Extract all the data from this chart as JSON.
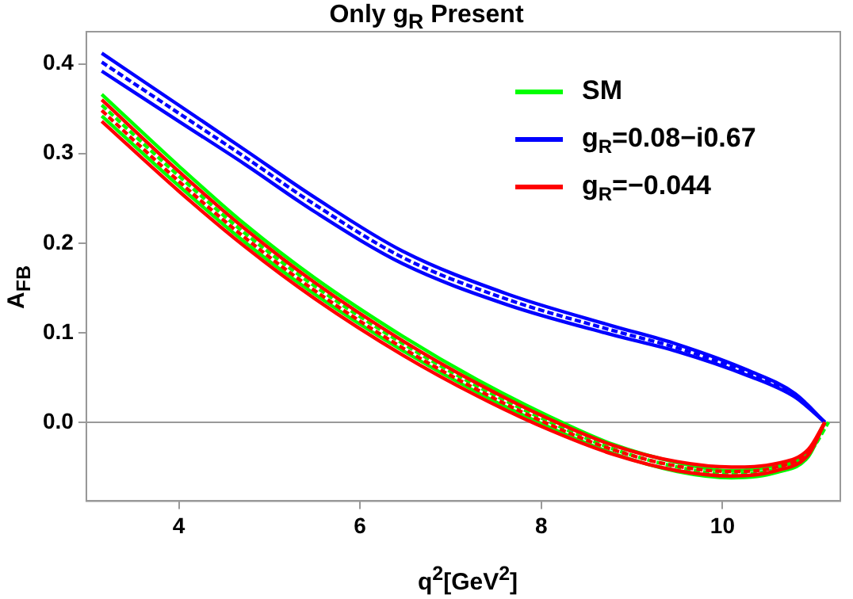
{
  "chart_data": {
    "type": "line",
    "title": "Only g$_{R}$ Present",
    "xlabel": "q$^{2}$[GeV$^{2}$]",
    "ylabel": "A$_{FB}$",
    "xlim": [
      2.98,
      11.3
    ],
    "xticks": [
      4,
      6,
      8,
      10
    ],
    "ylim": [
      -0.088,
      0.436
    ],
    "yticks": [
      {
        "value": 0,
        "label": "0.0"
      },
      0.1,
      0.2,
      0.3,
      0.4
    ],
    "grid": false,
    "legend": "top right",
    "marker": "none",
    "ref_lines": [
      {
        "axis": "y",
        "value": 0,
        "color": "#999999"
      }
    ],
    "series": [
      {
        "name": "SM",
        "color": "#00ff00",
        "line_style": "dashed",
        "x": [
          3.15,
          4,
          4.73,
          5.5,
          6.47,
          7.3,
          8.1,
          8.8,
          9.5,
          10.1,
          10.6,
          10.95,
          11.17
        ],
        "values": [
          0.354,
          0.275,
          0.211,
          0.152,
          0.088,
          0.04,
          0.0,
          -0.03,
          -0.05,
          -0.058,
          -0.052,
          -0.035,
          0
        ]
      },
      {
        "color": "#00ff00",
        "line_style": "solid",
        "x": [
          3.15,
          4,
          4.73,
          5.5,
          6.47,
          7.3,
          8.1,
          8.8,
          9.5,
          10.1,
          10.6,
          10.95,
          11.13
        ],
        "values": [
          0.342,
          0.264,
          0.201,
          0.143,
          0.08,
          0.033,
          -0.006,
          -0.035,
          -0.055,
          -0.062,
          -0.056,
          -0.038,
          0
        ]
      },
      {
        "color": "#00ff00",
        "line_style": "solid",
        "x": [
          3.15,
          4,
          4.73,
          5.5,
          6.47,
          7.3,
          8.1,
          8.8,
          9.5,
          10.1,
          10.6,
          10.95,
          11.13
        ],
        "values": [
          0.366,
          0.286,
          0.221,
          0.161,
          0.096,
          0.047,
          0.006,
          -0.025,
          -0.045,
          -0.054,
          -0.048,
          -0.032,
          0
        ]
      },
      {
        "name": "g$_{R}$=0.08−i0.67",
        "color": "#0000ff",
        "line_style": "dashed",
        "x": [
          3.15,
          4,
          4.73,
          5.5,
          6.47,
          7.63,
          8.77,
          9.5,
          10.28,
          10.8,
          11.13
        ],
        "values": [
          0.402,
          0.345,
          0.296,
          0.243,
          0.184,
          0.137,
          0.103,
          0.083,
          0.055,
          0.03,
          0
        ]
      },
      {
        "color": "#0000ff",
        "line_style": "solid",
        "x": [
          3.15,
          4,
          4.73,
          5.5,
          6.47,
          7.63,
          8.77,
          9.5,
          10.28,
          10.8,
          11.13
        ],
        "values": [
          0.392,
          0.336,
          0.288,
          0.235,
          0.177,
          0.131,
          0.098,
          0.079,
          0.052,
          0.028,
          0
        ]
      },
      {
        "color": "#0000ff",
        "line_style": "solid",
        "x": [
          3.15,
          4,
          4.73,
          5.5,
          6.47,
          7.63,
          8.77,
          9.5,
          10.28,
          10.8,
          11.13
        ],
        "values": [
          0.412,
          0.354,
          0.304,
          0.251,
          0.191,
          0.143,
          0.108,
          0.087,
          0.058,
          0.032,
          0
        ]
      },
      {
        "name": "g$_{R}$=−0.044",
        "color": "#ff0000",
        "line_style": "dashed",
        "x": [
          3.15,
          4,
          4.73,
          5.5,
          6.47,
          7.3,
          8.1,
          8.8,
          9.5,
          10.1,
          10.6,
          10.95,
          11.13
        ],
        "values": [
          0.348,
          0.269,
          0.206,
          0.147,
          0.083,
          0.036,
          -0.003,
          -0.031,
          -0.049,
          -0.055,
          -0.05,
          -0.033,
          0
        ]
      },
      {
        "color": "#ff0000",
        "line_style": "solid",
        "x": [
          3.15,
          4,
          4.73,
          5.5,
          6.47,
          7.3,
          8.1,
          8.8,
          9.5,
          10.1,
          10.6,
          10.95,
          11.13
        ],
        "values": [
          0.336,
          0.258,
          0.196,
          0.138,
          0.075,
          0.029,
          -0.009,
          -0.036,
          -0.054,
          -0.06,
          -0.054,
          -0.036,
          0
        ]
      },
      {
        "color": "#ff0000",
        "line_style": "solid",
        "x": [
          3.15,
          4,
          4.73,
          5.5,
          6.47,
          7.3,
          8.1,
          8.8,
          9.5,
          10.1,
          10.6,
          10.95,
          11.13
        ],
        "values": [
          0.36,
          0.28,
          0.216,
          0.156,
          0.091,
          0.043,
          0.003,
          -0.026,
          -0.044,
          -0.05,
          -0.046,
          -0.03,
          0
        ]
      }
    ]
  }
}
